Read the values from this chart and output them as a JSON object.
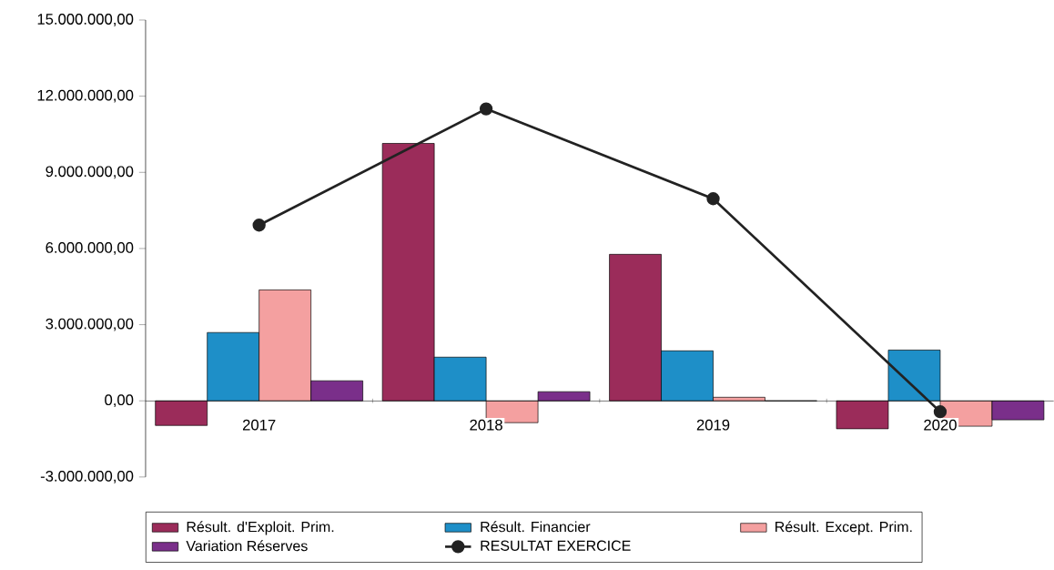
{
  "chart_data": {
    "type": "bar",
    "categories": [
      "2017",
      "2018",
      "2019",
      "2020"
    ],
    "series": [
      {
        "name": "Résult. d'Exploit. Prim.",
        "color": "#9b2c5a",
        "values": [
          -970000,
          10140000,
          5770000,
          -1100000
        ]
      },
      {
        "name": "Résult. Financier",
        "color": "#1e8fc8",
        "values": [
          2690000,
          1720000,
          1970000,
          2000000
        ]
      },
      {
        "name": "Résult. Except. Prim.",
        "color": "#f4a0a0",
        "values": [
          4370000,
          -860000,
          140000,
          -1000000
        ]
      },
      {
        "name": "Variation Réserves",
        "color": "#7a2f8a",
        "values": [
          790000,
          360000,
          0,
          -750000
        ]
      },
      {
        "name": "RESULTAT EXERCICE",
        "type": "line",
        "color": "#222222",
        "marker": "circle",
        "values": [
          6920000,
          11500000,
          7960000,
          -430000
        ]
      }
    ],
    "ylim": [
      -3000000,
      15000000
    ],
    "yticks": [
      {
        "value": -3000000,
        "label": "-3.000.000,00"
      },
      {
        "value": 0,
        "label": "0,00"
      },
      {
        "value": 3000000,
        "label": "3.000.000,00"
      },
      {
        "value": 6000000,
        "label": "6.000.000,00"
      },
      {
        "value": 9000000,
        "label": "9.000.000,00"
      },
      {
        "value": 12000000,
        "label": "12.000.000,00"
      },
      {
        "value": 15000000,
        "label": "15.000.000,00"
      }
    ],
    "legend": "bottom"
  }
}
